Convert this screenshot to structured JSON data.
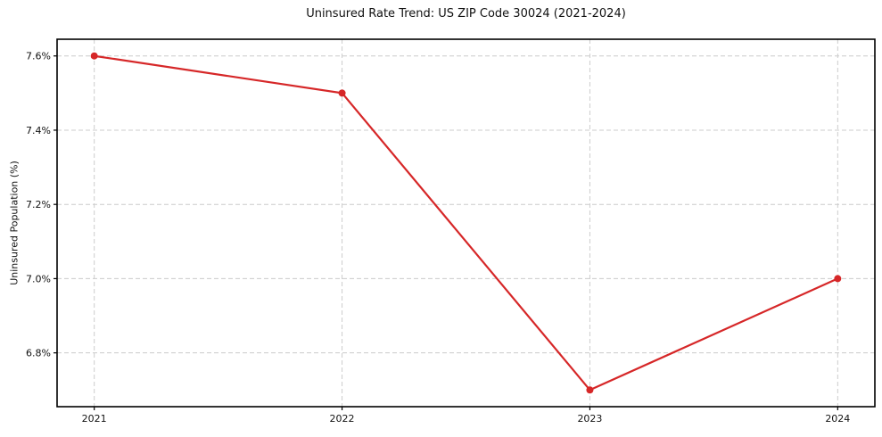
{
  "chart_data": {
    "type": "line",
    "title": "Uninsured Rate Trend: US ZIP Code 30024 (2021-2024)",
    "xlabel": "",
    "ylabel": "Uninsured Population (%)",
    "x": [
      2021,
      2022,
      2023,
      2024
    ],
    "values": [
      7.6,
      7.5,
      6.7,
      7.0
    ],
    "xticks": [
      2021,
      2022,
      2023,
      2024
    ],
    "xtick_labels": [
      "2021",
      "2022",
      "2023",
      "2024"
    ],
    "yticks": [
      6.8,
      7.0,
      7.2,
      7.4,
      7.6
    ],
    "ytick_labels": [
      "6.8%",
      "7.0%",
      "7.2%",
      "7.4%",
      "7.6%"
    ],
    "xlim": [
      2020.85,
      2024.15
    ],
    "ylim": [
      6.655,
      7.645
    ],
    "grid": true,
    "legend": false,
    "line_color": "#d62728",
    "marker_color": "#d62728",
    "grid_color": "#cccccc",
    "axis_color": "#000000"
  }
}
